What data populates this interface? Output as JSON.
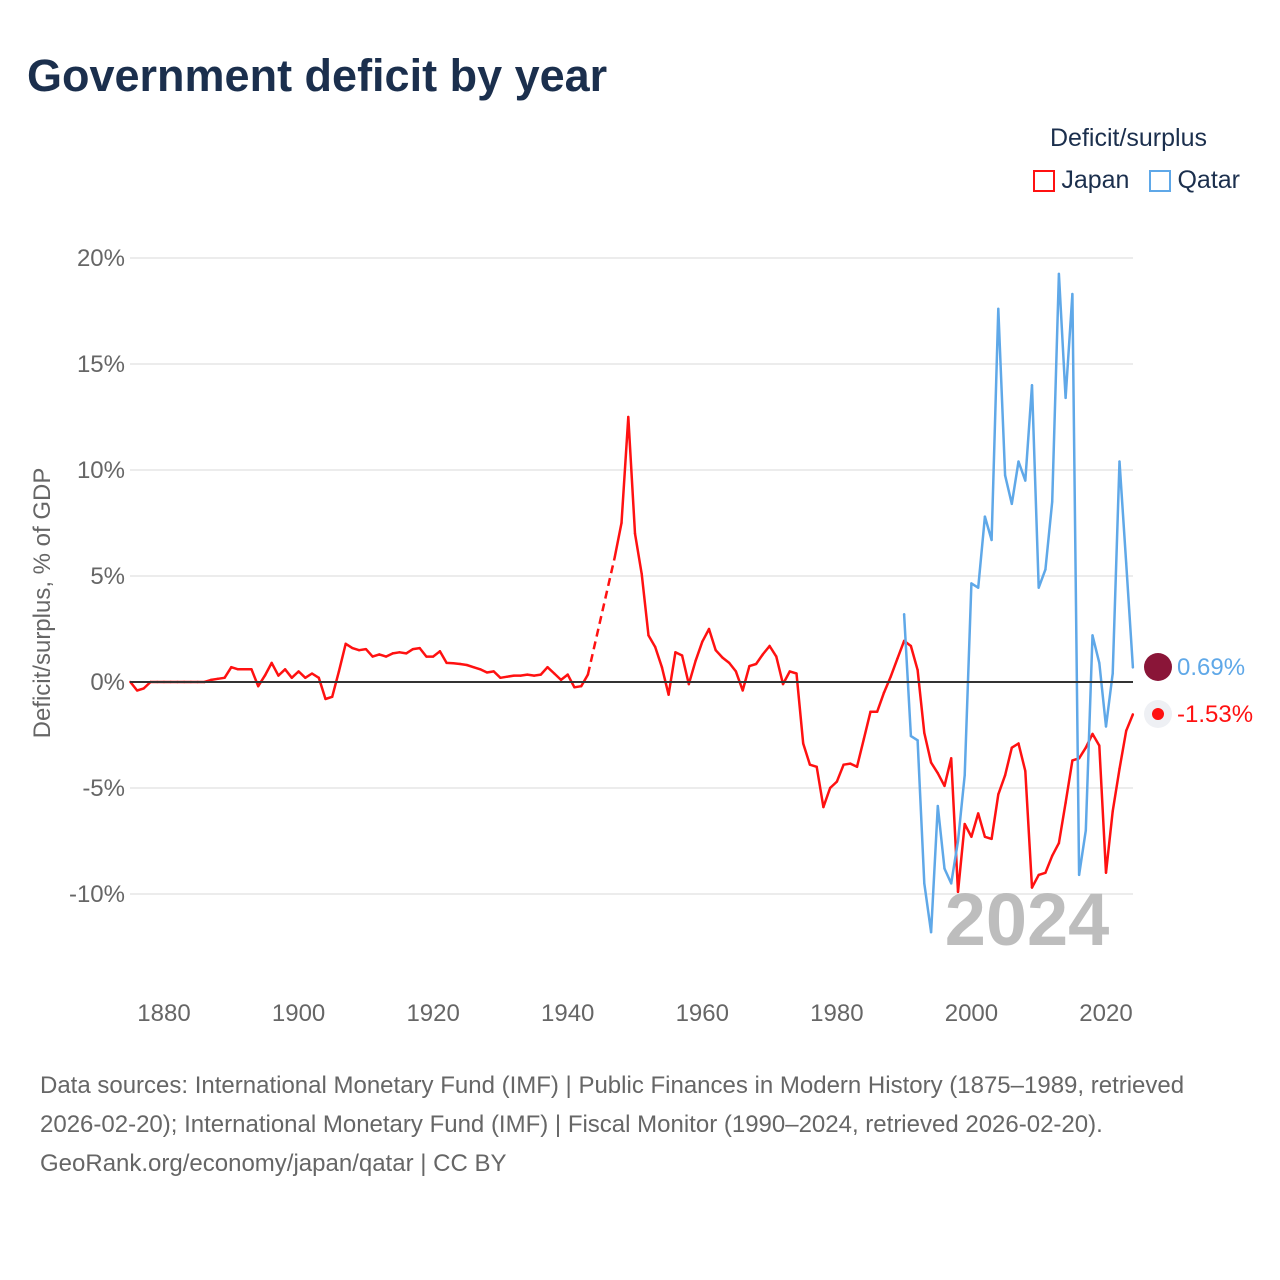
{
  "title": "Government deficit by year",
  "legend": {
    "title": "Deficit/surplus",
    "items": [
      {
        "label": "Japan",
        "color": "#ff1111"
      },
      {
        "label": "Qatar",
        "color": "#5fa8e8"
      }
    ]
  },
  "year_overlay": "2024",
  "end_labels": {
    "qatar": "0.69%",
    "japan": "-1.53%"
  },
  "footer": {
    "sources": "Data sources: International Monetary Fund (IMF) | Public Finances in Modern History (1875–1989, retrieved 2026-02-20); International Monetary Fund (IMF) | Fiscal Monitor (1990–2024, retrieved 2026-02-20).",
    "credit": "GeoRank.org/economy/japan/qatar | CC BY"
  },
  "chart_data": {
    "type": "line",
    "title": "Government deficit by year",
    "xlabel": "",
    "ylabel": "Deficit/surplus, % of GDP",
    "xlim": [
      1875,
      2024
    ],
    "ylim": [
      -13,
      20
    ],
    "x_ticks": [
      1880,
      1900,
      1920,
      1940,
      1960,
      1980,
      2000,
      2020
    ],
    "x_tick_labels": [
      "1880",
      "1900",
      "1920",
      "1940",
      "1960",
      "1980",
      "2000",
      "2020"
    ],
    "y_ticks": [
      20,
      15,
      10,
      5,
      0,
      -5,
      -10
    ],
    "y_tick_labels": [
      "20%",
      "15%",
      "10%",
      "5%",
      "0%",
      "-5%",
      "-10%"
    ],
    "grid": true,
    "legend_position": "top-right",
    "series": [
      {
        "name": "Japan",
        "color": "#ff1111",
        "start_year": 1875,
        "values": [
          0,
          -0.4,
          -0.3,
          0,
          0,
          0,
          0,
          0,
          0,
          0,
          0,
          0,
          0.1,
          0.15,
          0.2,
          0.7,
          0.6,
          0.6,
          0.6,
          -0.2,
          0.3,
          0.9,
          0.3,
          0.6,
          0.2,
          0.5,
          0.2,
          0.4,
          0.2,
          -0.8,
          -0.7,
          0.5,
          1.8,
          1.6,
          1.5,
          1.55,
          1.2,
          1.3,
          1.2,
          1.35,
          1.4,
          1.35,
          1.55,
          1.6,
          1.2,
          1.2,
          1.45,
          0.9,
          0.88,
          0.85,
          0.8,
          0.7,
          0.6,
          0.45,
          0.5,
          0.2,
          0.25,
          0.3,
          0.3,
          0.35,
          0.3,
          0.35,
          0.7,
          0.4,
          0.1,
          0.35,
          -0.25,
          -0.2,
          0.35,
          null,
          null,
          null,
          5.9,
          7.5,
          12.5,
          7.0,
          5.1,
          2.2,
          1.65,
          0.7,
          -0.6,
          1.4,
          1.25,
          -0.1,
          1.0,
          1.9,
          2.5,
          1.5,
          1.15,
          0.9,
          0.5,
          -0.4,
          0.75,
          0.85,
          1.3,
          1.7,
          1.2,
          -0.1,
          0.5,
          0.4,
          -2.9,
          -3.9,
          -4.0,
          -5.9,
          -5.0,
          -4.7,
          -3.9,
          -3.85,
          -4.0,
          -2.7,
          -1.4,
          -1.4,
          -0.5,
          0.25,
          1.1,
          1.94,
          1.7,
          0.57,
          -2.4,
          -3.8,
          -4.3,
          -4.9,
          -3.6,
          -9.9,
          -6.7,
          -7.3,
          -6.2,
          -7.3,
          -7.4,
          -5.3,
          -4.4,
          -3.1,
          -2.9,
          -4.2,
          -9.7,
          -9.1,
          -9.0,
          -8.2,
          -7.6,
          -5.7,
          -3.7,
          -3.6,
          -3.1,
          -2.45,
          -3.0,
          -9.0,
          -6.1,
          -4.1,
          -2.3,
          -1.53
        ]
      },
      {
        "name": "Qatar",
        "color": "#5fa8e8",
        "start_year": 1990,
        "values": [
          3.2,
          -2.55,
          -2.75,
          -9.5,
          -11.8,
          -5.85,
          -8.8,
          -9.5,
          -7.5,
          -4.4,
          4.65,
          4.45,
          7.8,
          6.7,
          17.6,
          9.75,
          8.4,
          10.4,
          9.5,
          14.0,
          4.45,
          5.3,
          8.5,
          19.25,
          13.4,
          18.3,
          -9.1,
          -7.0,
          2.2,
          0.9,
          -2.1,
          0.4,
          10.4,
          5.6,
          0.69
        ]
      }
    ]
  }
}
